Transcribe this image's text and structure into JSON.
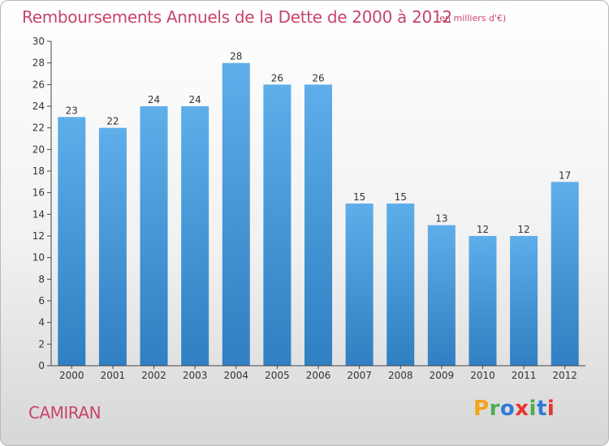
{
  "header": {
    "title": "Remboursements Annuels de la Dette de 2000 à 2012",
    "unit": "(en milliers d'€)"
  },
  "commune": "CAMIRAN",
  "logo": {
    "letters": [
      "P",
      "r",
      "o",
      "x",
      "i",
      "t",
      "i"
    ],
    "colors": [
      "#f4a31c",
      "#4caf50",
      "#2e7bd6",
      "#e8342c",
      "#4caf50",
      "#2e7bd6",
      "#e8342c"
    ]
  },
  "chart_data": {
    "type": "bar",
    "categories": [
      "2000",
      "2001",
      "2002",
      "2003",
      "2004",
      "2005",
      "2006",
      "2007",
      "2008",
      "2009",
      "2010",
      "2011",
      "2012"
    ],
    "values": [
      23,
      22,
      24,
      24,
      28,
      26,
      26,
      15,
      15,
      13,
      12,
      12,
      17
    ],
    "yticks": [
      0,
      2,
      4,
      6,
      8,
      10,
      12,
      14,
      16,
      18,
      20,
      22,
      24,
      26,
      28,
      30
    ],
    "ylim": [
      0,
      30
    ],
    "grid": false,
    "bar_color": "#4f9fde"
  }
}
